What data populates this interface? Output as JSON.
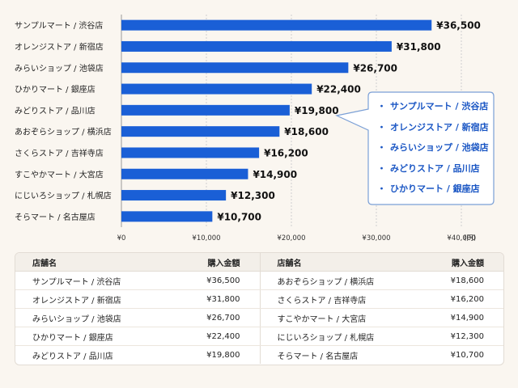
{
  "chart_data": {
    "type": "bar",
    "orientation": "horizontal",
    "categories": [
      "サンプルマート / 渋谷店",
      "オレンジストア / 新宿店",
      "みらいショップ / 池袋店",
      "ひかりマート / 銀座店",
      "みどりストア / 品川店",
      "あおぞらショップ / 横浜店",
      "さくらストア / 吉祥寺店",
      "すこやかマート / 大宮店",
      "にじいろショップ / 札幌店",
      "そらマート / 名古屋店"
    ],
    "values": [
      36500,
      31800,
      26700,
      22400,
      19800,
      18600,
      16200,
      14900,
      12300,
      10700
    ],
    "value_labels": [
      "¥36,500",
      "¥31,800",
      "¥26,700",
      "¥22,400",
      "¥19,800",
      "¥18,600",
      "¥16,200",
      "¥14,900",
      "¥12,300",
      "¥10,700"
    ],
    "xlim": [
      0,
      42000
    ],
    "xticks": [
      0,
      10000,
      20000,
      30000,
      40000
    ],
    "xtick_labels": [
      "¥0",
      "¥10,000",
      "¥20,000",
      "¥30,000",
      "¥40,000"
    ],
    "xunit": "(円)",
    "grid": true,
    "bar_color": "#1a5fd6"
  },
  "callout": {
    "bullet": "・",
    "items": [
      "サンプルマート / 渋谷店",
      "オレンジストア / 新宿店",
      "みらいショップ / 池袋店",
      "みどりストア / 品川店",
      "ひかりマート / 銀座店"
    ]
  },
  "table": {
    "headers": [
      "店舗名",
      "購入金額",
      "店舗名",
      "購入金額"
    ],
    "rows": [
      [
        "サンプルマート / 渋谷店",
        "¥36,500",
        "あおぞらショップ / 横浜店",
        "¥18,600"
      ],
      [
        "オレンジストア / 新宿店",
        "¥31,800",
        "さくらストア / 吉祥寺店",
        "¥16,200"
      ],
      [
        "みらいショップ / 池袋店",
        "¥26,700",
        "すこやかマート / 大宮店",
        "¥14,900"
      ],
      [
        "ひかりマート / 銀座店",
        "¥22,400",
        "にじいろショップ / 札幌店",
        "¥12,300"
      ],
      [
        "みどりストア / 品川店",
        "¥19,800",
        "そらマート / 名古屋店",
        "¥10,700"
      ]
    ]
  }
}
